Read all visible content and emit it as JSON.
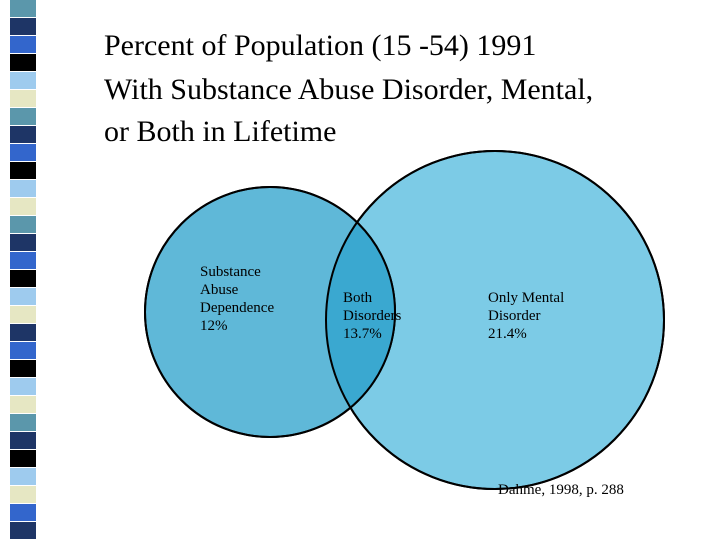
{
  "title": {
    "lines": [
      "Percent of Population (15 -54) 1991",
      "With Substance Abuse Disorder, Mental,",
      "or Both in Lifetime"
    ]
  },
  "venn": {
    "regions": {
      "substance_only": {
        "lines": [
          "Substance",
          "Abuse",
          "Dependence",
          "12%"
        ],
        "value_percent": 12,
        "color": "#5fb8d8"
      },
      "both": {
        "lines": [
          "Both",
          "Disorders",
          "13.7%"
        ],
        "value_percent": 13.7,
        "color": "#3aa8d0"
      },
      "mental_only": {
        "lines": [
          "Only Mental",
          "Disorder",
          "21.4%"
        ],
        "value_percent": 21.4,
        "color": "#7ccbe6"
      }
    },
    "outline_color": "#000000"
  },
  "citation": "Dahme, 1998, p. 288",
  "side_strip": {
    "colors": [
      "#5b97ab",
      "#1e3566",
      "#3366cc",
      "#000000",
      "#9ecbee",
      "#e6e7c3",
      "#5b97ab",
      "#1e3566",
      "#3366cc",
      "#000000",
      "#9ecbee",
      "#e6e7c3",
      "#5b97ab",
      "#1e3566",
      "#3366cc",
      "#000000",
      "#9ecbee",
      "#e6e7c3",
      "#1e3566",
      "#3366cc",
      "#000000",
      "#9ecbee",
      "#e6e7c3",
      "#5b97ab",
      "#1e3566",
      "#000000",
      "#9ecbee",
      "#e6e7c3",
      "#3366cc",
      "#1e3566"
    ]
  }
}
